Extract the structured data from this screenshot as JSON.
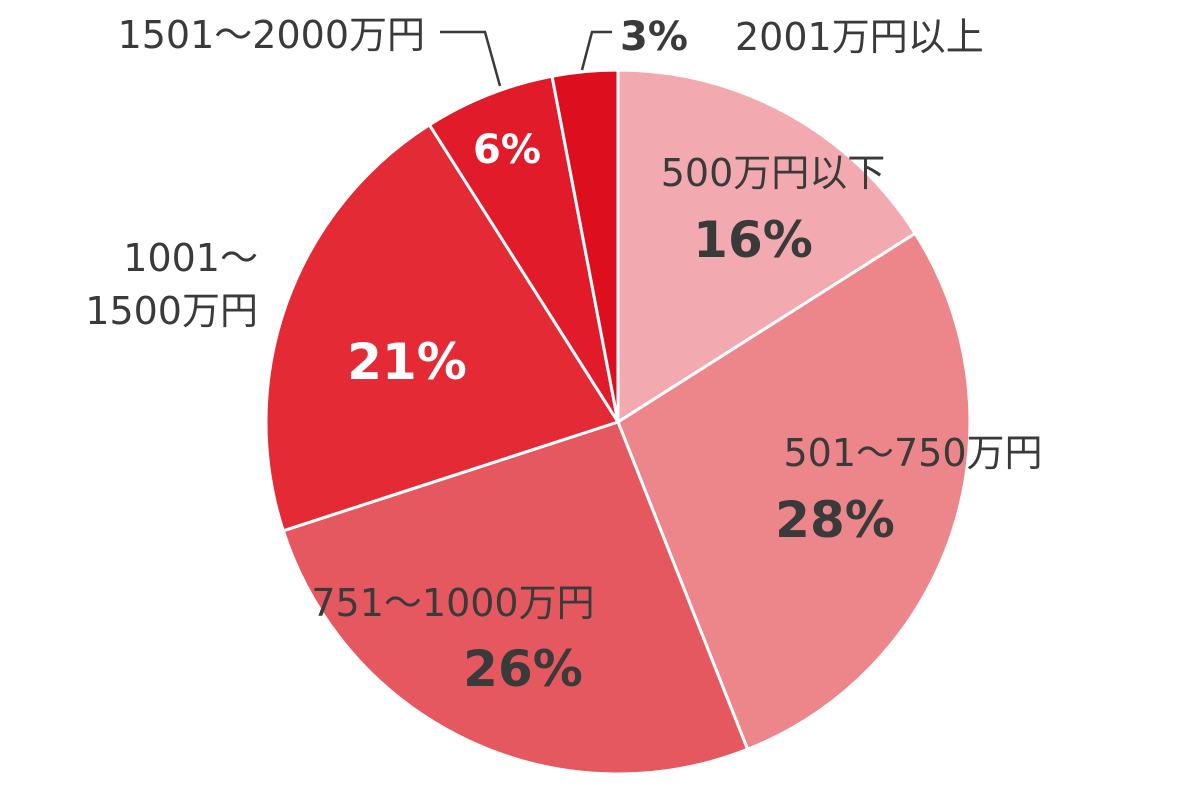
{
  "chart_data": {
    "type": "pie",
    "slices": [
      {
        "label": "500万円以下",
        "value": 16,
        "value_label": "16%",
        "color": "#f2aab0"
      },
      {
        "label": "501～750万円",
        "value": 28,
        "value_label": "28%",
        "color": "#ec868b"
      },
      {
        "label": "751～1000万円",
        "value": 26,
        "value_label": "26%",
        "color": "#e65860"
      },
      {
        "label_lines": [
          "1001～",
          "1500万円"
        ],
        "value": 21,
        "value_label": "21%",
        "color": "#e32a35"
      },
      {
        "label": "1501～2000万円",
        "value": 6,
        "value_label": "6%",
        "color": "#e21b2b"
      },
      {
        "label": "2001万円以上",
        "value": 3,
        "value_label": "3%",
        "color": "#dd0f1e"
      }
    ]
  }
}
